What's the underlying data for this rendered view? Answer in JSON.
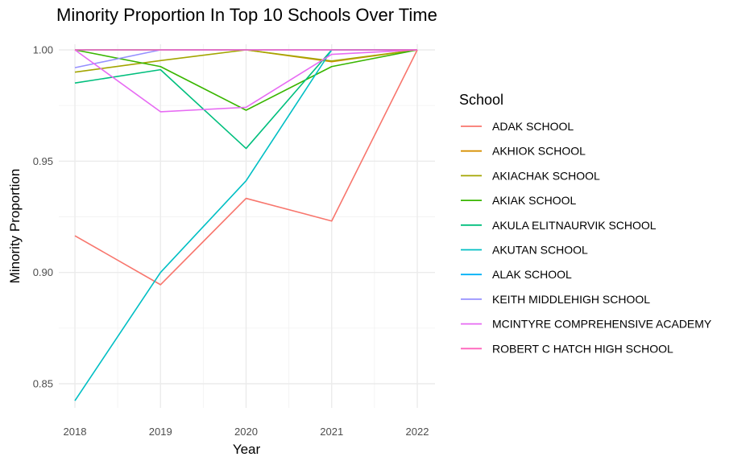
{
  "chart_data": {
    "type": "line",
    "title": "Minority Proportion In Top 10 Schools Over Time",
    "xlabel": "Year",
    "ylabel": "Minority Proportion",
    "x": [
      2018,
      2019,
      2020,
      2021,
      2022
    ],
    "x_ticks": [
      "2018",
      "2019",
      "2020",
      "2021",
      "2022"
    ],
    "xlim": [
      2018,
      2022
    ],
    "y_ticks": [
      0.85,
      0.9,
      0.95,
      1.0
    ],
    "y_tick_labels": [
      "0.85",
      "0.90",
      "0.95",
      "1.00"
    ],
    "ylim": [
      0.8375,
      1.0055
    ],
    "grid": true,
    "legend": {
      "title": "School",
      "position": "right"
    },
    "series": [
      {
        "name": "ADAK SCHOOL",
        "color": "#F8766D",
        "values": [
          0.9165,
          0.8945,
          0.9333,
          0.9231,
          1.0
        ]
      },
      {
        "name": "AKHIOK SCHOOL",
        "color": "#D89000",
        "values": [
          1.0,
          1.0,
          1.0,
          0.9947,
          1.0
        ]
      },
      {
        "name": "AKIACHAK SCHOOL",
        "color": "#A3A500",
        "values": [
          0.99,
          0.9952,
          1.0,
          0.995,
          1.0
        ]
      },
      {
        "name": "AKIAK SCHOOL",
        "color": "#39B600",
        "values": [
          1.0,
          0.9925,
          0.9729,
          0.9925,
          1.0
        ]
      },
      {
        "name": "AKULA ELITNAURVIK SCHOOL",
        "color": "#00BF7D",
        "values": [
          0.9851,
          0.9911,
          0.9557,
          1.0,
          1.0
        ]
      },
      {
        "name": "AKUTAN SCHOOL",
        "color": "#00BFC4",
        "values": [
          0.8424,
          0.9,
          0.9412,
          1.0,
          1.0
        ]
      },
      {
        "name": "ALAK SCHOOL",
        "color": "#00B0F6",
        "values": [
          1.0,
          1.0,
          1.0,
          1.0,
          1.0
        ]
      },
      {
        "name": "KEITH MIDDLEHIGH SCHOOL",
        "color": "#9590FF",
        "values": [
          0.992,
          1.0,
          1.0,
          1.0,
          1.0
        ]
      },
      {
        "name": "MCINTYRE COMPREHENSIVE ACADEMY",
        "color": "#E76BF3",
        "values": [
          1.0,
          0.9722,
          0.9742,
          0.998,
          1.0
        ]
      },
      {
        "name": "ROBERT C HATCH HIGH SCHOOL",
        "color": "#FF62BC",
        "values": [
          1.0,
          1.0,
          1.0,
          1.0,
          1.0
        ]
      }
    ]
  }
}
